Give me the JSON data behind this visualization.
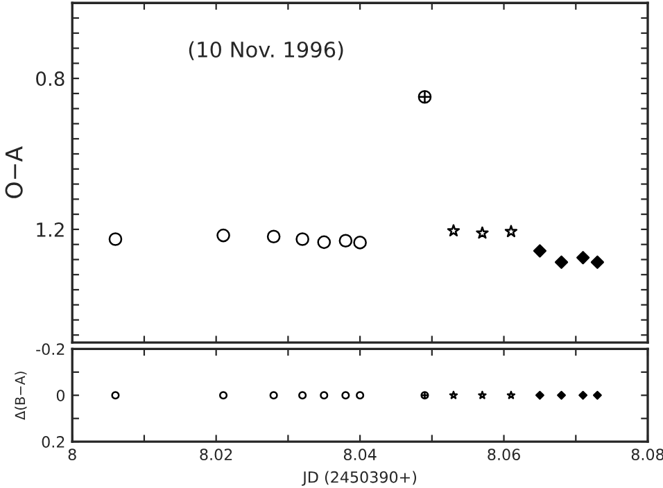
{
  "chart_data": [
    {
      "type": "scatter",
      "ylabel": "O−A",
      "annotations": [
        "(10 Nov. 1996)"
      ],
      "xlim": [
        8,
        8.08
      ],
      "ylim": [
        1.5,
        0.6
      ],
      "tick_labels": "y",
      "xticks": [
        {
          "value": 8,
          "label": null
        },
        {
          "value": 8.01,
          "label": null
        },
        {
          "value": 8.02,
          "label": null
        },
        {
          "value": 8.03,
          "label": null
        },
        {
          "value": 8.04,
          "label": null
        },
        {
          "value": 8.05,
          "label": null
        },
        {
          "value": 8.06,
          "label": null
        },
        {
          "value": 8.07,
          "label": null
        },
        {
          "value": 8.08,
          "label": null
        }
      ],
      "yticks": [
        {
          "value": 0.64,
          "label": null
        },
        {
          "value": 0.68,
          "label": null
        },
        {
          "value": 0.72,
          "label": null
        },
        {
          "value": 0.76,
          "label": null
        },
        0.8,
        {
          "value": 0.84,
          "label": null
        },
        {
          "value": 0.88,
          "label": null
        },
        {
          "value": 0.92,
          "label": null
        },
        {
          "value": 0.96,
          "label": null
        },
        {
          "value": 1.0,
          "label": null
        },
        {
          "value": 1.04,
          "label": null
        },
        {
          "value": 1.08,
          "label": null
        },
        {
          "value": 1.12,
          "label": null
        },
        {
          "value": 1.16,
          "label": null
        },
        1.2,
        {
          "value": 1.24,
          "label": null
        },
        {
          "value": 1.28,
          "label": null
        },
        {
          "value": 1.32,
          "label": null
        },
        {
          "value": 1.36,
          "label": null
        },
        {
          "value": 1.4,
          "label": null
        },
        {
          "value": 1.44,
          "label": null
        },
        {
          "value": 1.48,
          "label": null
        }
      ],
      "series": [
        {
          "color": "#000000",
          "marker": "circle",
          "x": [
            8.006,
            8.021,
            8.028,
            8.032,
            8.035,
            8.038,
            8.04
          ],
          "values": [
            1.226,
            1.216,
            1.219,
            1.226,
            1.234,
            1.23,
            1.235
          ]
        },
        {
          "color": "#000000",
          "marker": "cross",
          "x": [
            8.049
          ],
          "values": [
            0.849
          ]
        },
        {
          "color": "#000000",
          "marker": "star",
          "x": [
            8.053,
            8.057,
            8.061
          ],
          "values": [
            1.204,
            1.21,
            1.206
          ]
        },
        {
          "color": "#000000",
          "marker": "diamond",
          "x": [
            8.065,
            8.068,
            8.071,
            8.073
          ],
          "values": [
            1.257,
            1.287,
            1.275,
            1.287
          ]
        }
      ]
    },
    {
      "type": "scatter",
      "xlabel": "JD (2450390+)",
      "ylabel": "Δ(B−A)",
      "xlim": [
        8,
        8.08
      ],
      "ylim": [
        0.2,
        -0.2
      ],
      "xticks": [
        8,
        {
          "value": 8.01,
          "label": null
        },
        8.02,
        {
          "value": 8.03,
          "label": null
        },
        8.04,
        {
          "value": 8.05,
          "label": null
        },
        8.06,
        {
          "value": 8.07,
          "label": null
        },
        8.08
      ],
      "yticks": [
        -0.2,
        {
          "value": -0.1,
          "label": null
        },
        0,
        {
          "value": 0.1,
          "label": null
        },
        0.2
      ],
      "series": [
        {
          "color": "#000000",
          "marker": "circle",
          "x": [
            8.006,
            8.021,
            8.028,
            8.032,
            8.035,
            8.038,
            8.04
          ],
          "values": [
            0,
            0,
            0,
            0,
            0,
            0,
            0
          ]
        },
        {
          "color": "#000000",
          "marker": "cross",
          "x": [
            8.049
          ],
          "values": [
            0
          ]
        },
        {
          "color": "#000000",
          "marker": "star",
          "x": [
            8.053,
            8.057,
            8.061
          ],
          "values": [
            0,
            0,
            0
          ]
        },
        {
          "color": "#000000",
          "marker": "diamond",
          "x": [
            8.065,
            8.068,
            8.071,
            8.073
          ],
          "values": [
            0,
            0,
            0,
            0
          ]
        }
      ]
    }
  ]
}
